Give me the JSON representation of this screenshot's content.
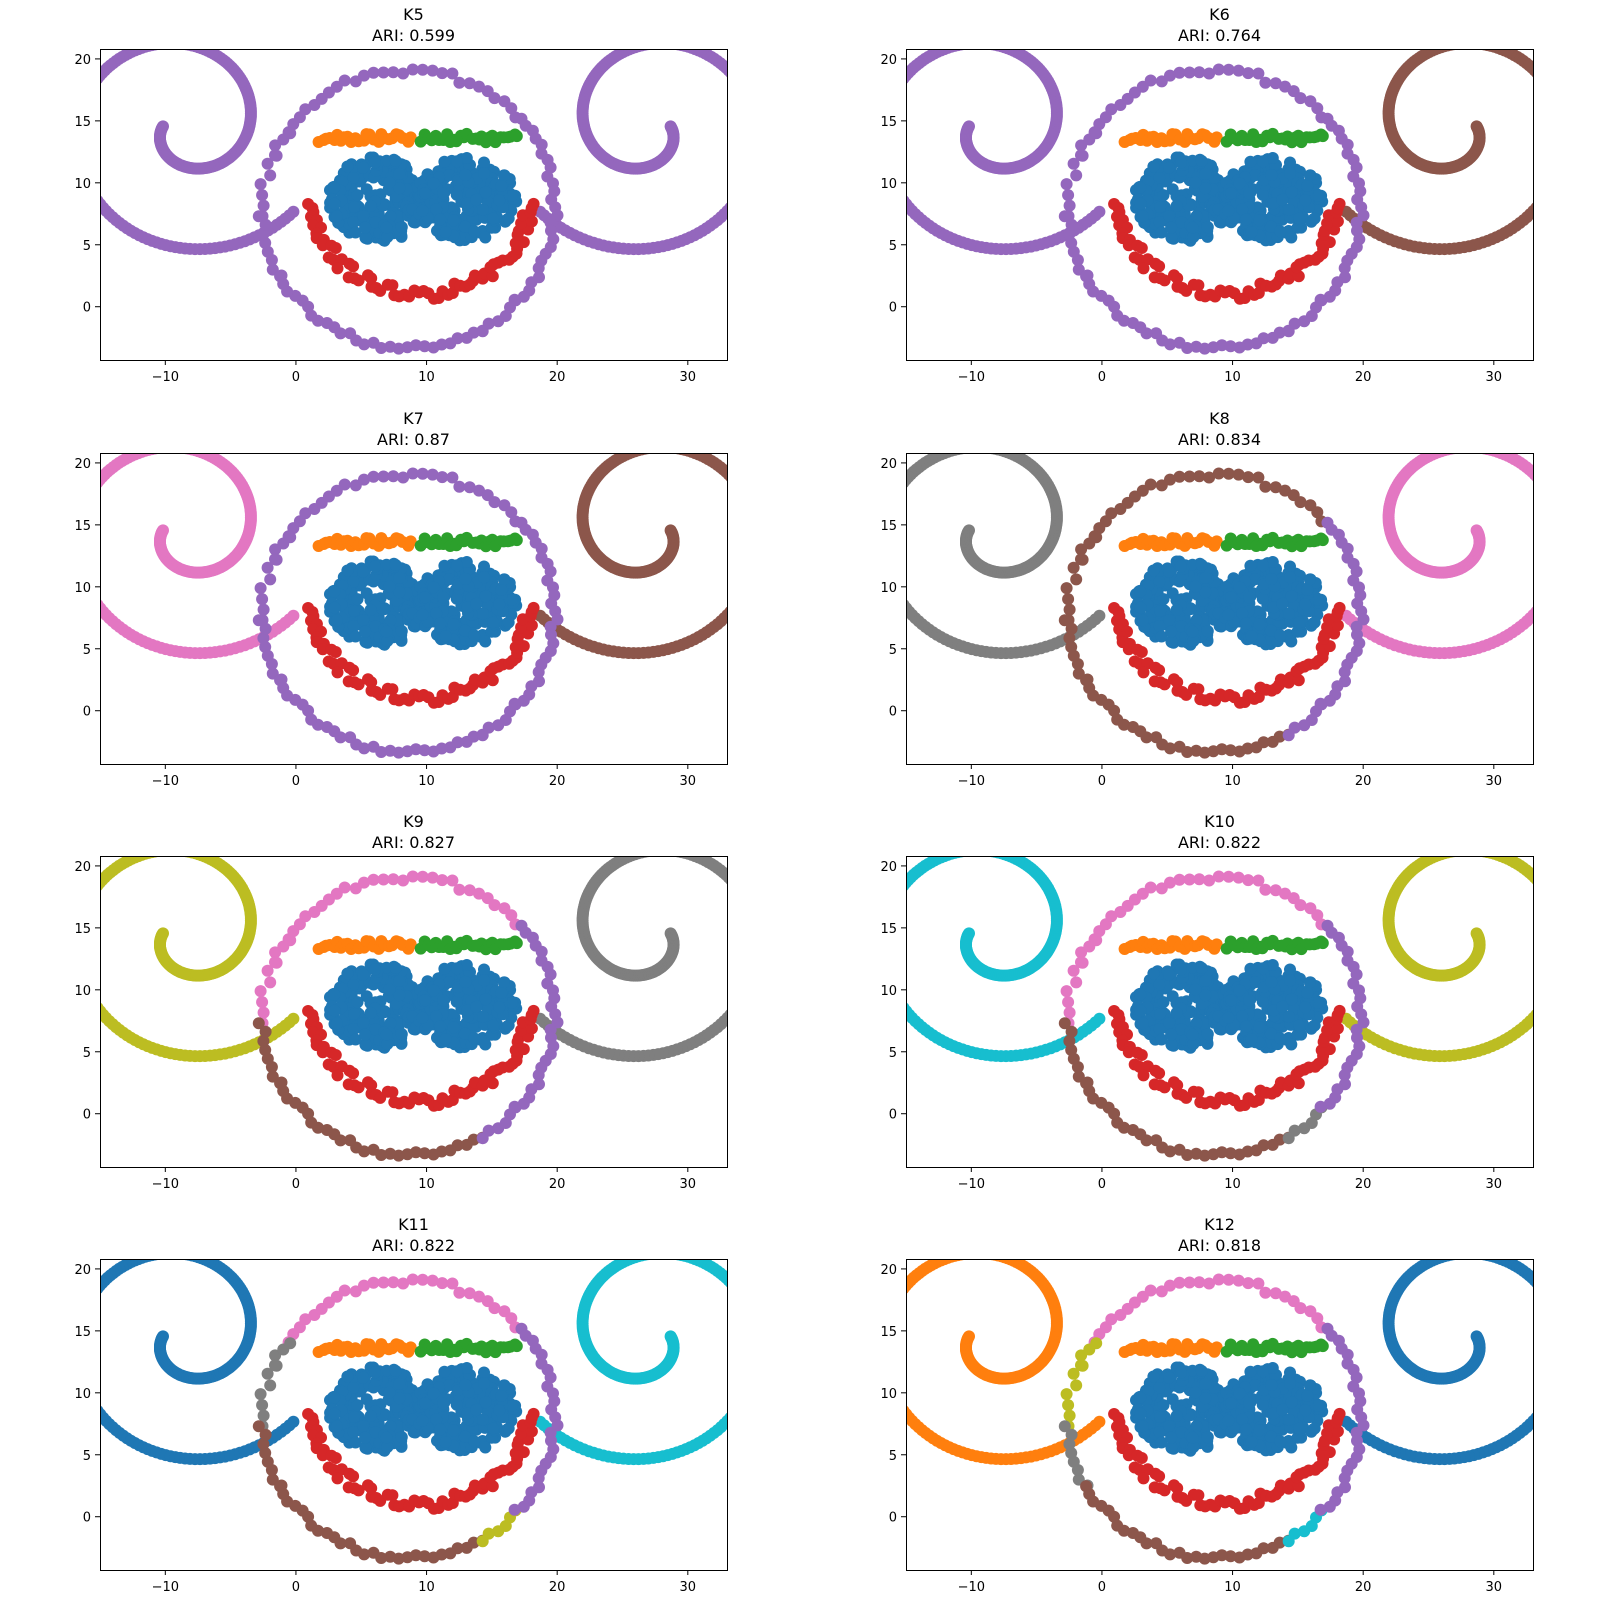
{
  "colors": {
    "blue": "#1f77b4",
    "orange": "#ff7f0e",
    "green": "#2ca02c",
    "red": "#d62728",
    "purple": "#9467bd",
    "brown": "#8c564b",
    "pink": "#e377c2",
    "gray": "#7f7f7f",
    "olive": "#bcbd22",
    "cyan": "#17becf"
  },
  "chart_data": [
    {
      "type": "scatter",
      "title": "K5",
      "subtitle": "ARI: 0.599",
      "xlim": [
        -15,
        33
      ],
      "ylim": [
        -4.3,
        20.8
      ],
      "xticks": [
        -10,
        0,
        10,
        20,
        30
      ],
      "yticks": [
        0,
        5,
        10,
        15,
        20
      ],
      "cluster_colors": {
        "left_spiral": "purple",
        "right_spiral": "purple",
        "ring_top_left": "purple",
        "ring_left_upper": "purple",
        "ring_left_lower": "purple",
        "ring_bottom": "purple",
        "ring_right_lower": "purple",
        "ring_right": "purple",
        "eyes": "blue",
        "brow_left": "orange",
        "brow_right": "green",
        "smile": "red"
      }
    },
    {
      "type": "scatter",
      "title": "K6",
      "subtitle": "ARI: 0.764",
      "xlim": [
        -15,
        33
      ],
      "ylim": [
        -4.3,
        20.8
      ],
      "xticks": [
        -10,
        0,
        10,
        20,
        30
      ],
      "yticks": [
        0,
        5,
        10,
        15,
        20
      ],
      "cluster_colors": {
        "left_spiral": "purple",
        "right_spiral": "brown",
        "ring_top_left": "purple",
        "ring_left_upper": "purple",
        "ring_left_lower": "purple",
        "ring_bottom": "purple",
        "ring_right_lower": "purple",
        "ring_right": "purple",
        "eyes": "blue",
        "brow_left": "orange",
        "brow_right": "green",
        "smile": "red"
      }
    },
    {
      "type": "scatter",
      "title": "K7",
      "subtitle": "ARI: 0.87",
      "xlim": [
        -15,
        33
      ],
      "ylim": [
        -4.3,
        20.8
      ],
      "xticks": [
        -10,
        0,
        10,
        20,
        30
      ],
      "yticks": [
        0,
        5,
        10,
        15,
        20
      ],
      "cluster_colors": {
        "left_spiral": "pink",
        "right_spiral": "brown",
        "ring_top_left": "purple",
        "ring_left_upper": "purple",
        "ring_left_lower": "purple",
        "ring_bottom": "purple",
        "ring_right_lower": "purple",
        "ring_right": "purple",
        "eyes": "blue",
        "brow_left": "orange",
        "brow_right": "green",
        "smile": "red"
      }
    },
    {
      "type": "scatter",
      "title": "K8",
      "subtitle": "ARI: 0.834",
      "xlim": [
        -15,
        33
      ],
      "ylim": [
        -4.3,
        20.8
      ],
      "xticks": [
        -10,
        0,
        10,
        20,
        30
      ],
      "yticks": [
        0,
        5,
        10,
        15,
        20
      ],
      "cluster_colors": {
        "left_spiral": "gray",
        "right_spiral": "pink",
        "ring_top_left": "brown",
        "ring_left_upper": "brown",
        "ring_left_lower": "brown",
        "ring_bottom": "brown",
        "ring_right_lower": "purple",
        "ring_right": "purple",
        "eyes": "blue",
        "brow_left": "orange",
        "brow_right": "green",
        "smile": "red"
      }
    },
    {
      "type": "scatter",
      "title": "K9",
      "subtitle": "ARI: 0.827",
      "xlim": [
        -15,
        33
      ],
      "ylim": [
        -4.3,
        20.8
      ],
      "xticks": [
        -10,
        0,
        10,
        20,
        30
      ],
      "yticks": [
        0,
        5,
        10,
        15,
        20
      ],
      "cluster_colors": {
        "left_spiral": "olive",
        "right_spiral": "gray",
        "ring_top_left": "pink",
        "ring_left_upper": "pink",
        "ring_left_lower": "brown",
        "ring_bottom": "brown",
        "ring_right_lower": "purple",
        "ring_right": "purple",
        "eyes": "blue",
        "brow_left": "orange",
        "brow_right": "green",
        "smile": "red"
      }
    },
    {
      "type": "scatter",
      "title": "K10",
      "subtitle": "ARI: 0.822",
      "xlim": [
        -15,
        33
      ],
      "ylim": [
        -4.3,
        20.8
      ],
      "xticks": [
        -10,
        0,
        10,
        20,
        30
      ],
      "yticks": [
        0,
        5,
        10,
        15,
        20
      ],
      "cluster_colors": {
        "left_spiral": "cyan",
        "right_spiral": "olive",
        "ring_top_left": "pink",
        "ring_left_upper": "pink",
        "ring_left_lower": "brown",
        "ring_bottom": "brown",
        "ring_right_lower": "gray",
        "ring_right": "purple",
        "eyes": "blue",
        "brow_left": "orange",
        "brow_right": "green",
        "smile": "red"
      }
    },
    {
      "type": "scatter",
      "title": "K11",
      "subtitle": "ARI: 0.822",
      "xlim": [
        -15,
        33
      ],
      "ylim": [
        -4.3,
        20.8
      ],
      "xticks": [
        -10,
        0,
        10,
        20,
        30
      ],
      "yticks": [
        0,
        5,
        10,
        15,
        20
      ],
      "cluster_colors": {
        "left_spiral": "blue",
        "right_spiral": "cyan",
        "ring_top_left": "pink",
        "ring_left_upper": "gray",
        "ring_left_lower": "brown",
        "ring_bottom": "brown",
        "ring_right_lower": "olive",
        "ring_right": "purple",
        "eyes": "blue",
        "brow_left": "orange",
        "brow_right": "green",
        "smile": "red"
      }
    },
    {
      "type": "scatter",
      "title": "K12",
      "subtitle": "ARI: 0.818",
      "xlim": [
        -15,
        33
      ],
      "ylim": [
        -4.3,
        20.8
      ],
      "xticks": [
        -10,
        0,
        10,
        20,
        30
      ],
      "yticks": [
        0,
        5,
        10,
        15,
        20
      ],
      "cluster_colors": {
        "left_spiral": "orange",
        "right_spiral": "blue",
        "ring_top_left": "pink",
        "ring_left_upper": "olive",
        "ring_left_lower": "gray",
        "ring_bottom": "brown",
        "ring_right_lower": "cyan",
        "ring_right": "purple",
        "eyes": "blue",
        "brow_left": "orange",
        "brow_right": "green",
        "smile": "red"
      }
    }
  ]
}
